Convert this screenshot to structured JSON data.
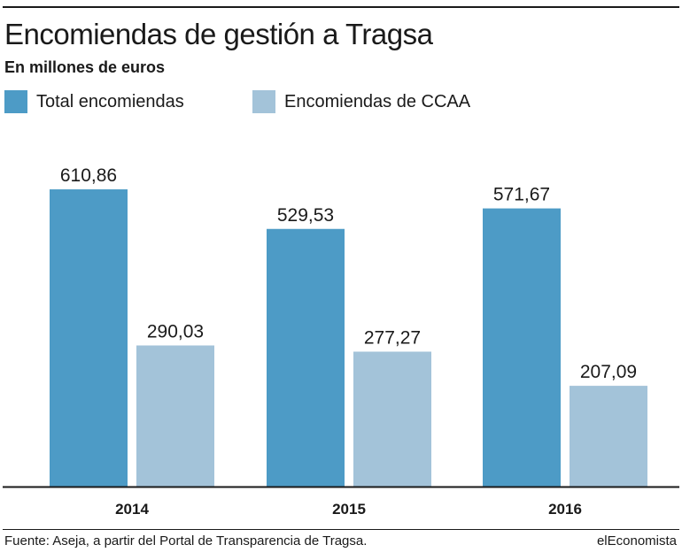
{
  "header": {
    "title": "Encomiendas de gestión a Tragsa",
    "subtitle": "En millones de euros"
  },
  "legend": [
    {
      "label": "Total encomiendas",
      "color": "#4d9bc6"
    },
    {
      "label": "Encomiendas de CCAA",
      "color": "#a3c3d9"
    }
  ],
  "chart_data": {
    "type": "bar",
    "title": "Encomiendas de gestión a Tragsa",
    "subtitle": "En millones de euros",
    "categories": [
      "2014",
      "2015",
      "2016"
    ],
    "series": [
      {
        "name": "Total encomiendas",
        "values": [
          610.86,
          529.53,
          571.67
        ],
        "labels": [
          "610,86",
          "529,53",
          "571,67"
        ],
        "color": "#4d9bc6"
      },
      {
        "name": "Encomiendas de CCAA",
        "values": [
          290.03,
          277.27,
          207.09
        ],
        "labels": [
          "290,03",
          "277,27",
          "207,09"
        ],
        "color": "#a3c3d9"
      }
    ],
    "ylim": [
      0,
      620
    ],
    "grid": false,
    "legend_position": "top-left",
    "xlabel": "",
    "ylabel": ""
  },
  "footer": {
    "source": "Fuente: Aseja, a partir del Portal de Transparencia de Tragsa.",
    "brand": "elEconomista"
  }
}
